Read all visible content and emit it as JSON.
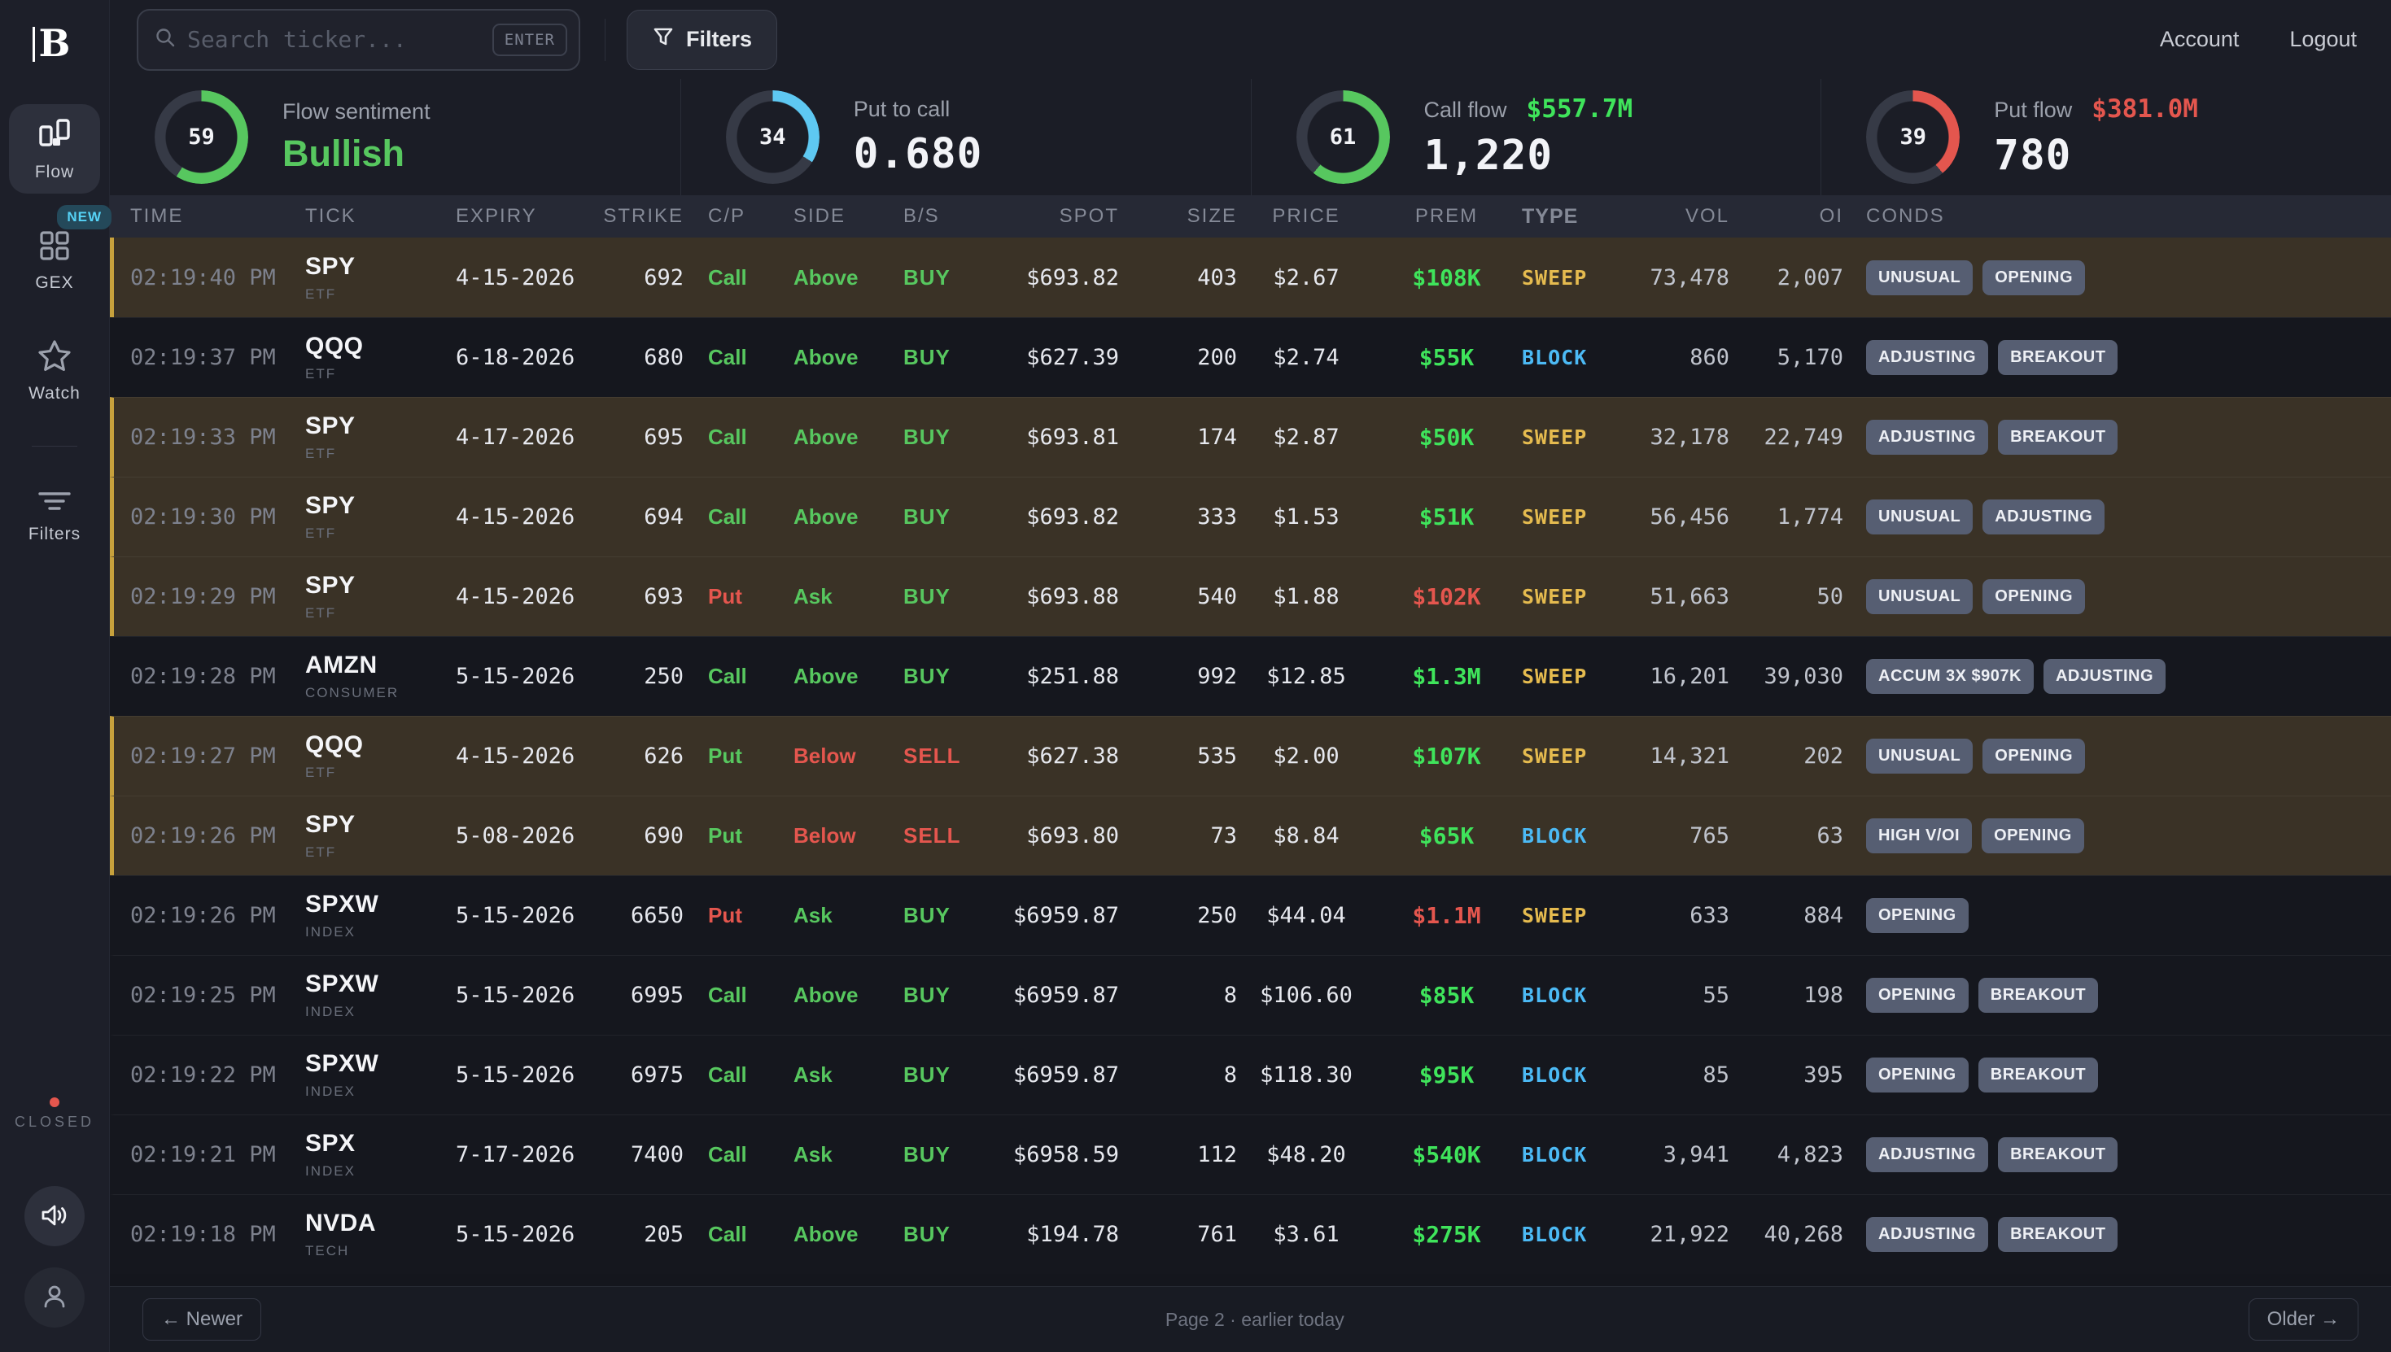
{
  "colors": {
    "green": "#57c75f",
    "lime": "#3fe45b",
    "red": "#e4564e",
    "blue": "#4cbaf5",
    "yellow": "#e5bb4f",
    "cyan": "#5ec8f2",
    "white": "#f2f3f7",
    "gold_highlight": "#c7a13c",
    "highlight_row_bg": "#3a3226"
  },
  "brand": {
    "logo_letter": "B"
  },
  "topbar": {
    "search_placeholder": "Search ticker...",
    "enter_hint": "ENTER",
    "filters_label": "Filters",
    "account_label": "Account",
    "logout_label": "Logout"
  },
  "sidebar": {
    "items": [
      {
        "label": "Flow",
        "active": true
      },
      {
        "label": "GEX",
        "badge": "NEW"
      },
      {
        "label": "Watch"
      },
      {
        "label": "Filters"
      }
    ],
    "market_status": "CLOSED"
  },
  "stats": [
    {
      "pct": 59,
      "color": "green",
      "label": "Flow sentiment",
      "value": "Bullish",
      "value_color": "green"
    },
    {
      "pct": 34,
      "color": "cyan",
      "label": "Put to call",
      "value": "0.680",
      "value_color": "white"
    },
    {
      "pct": 61,
      "color": "green",
      "label": "Call flow",
      "label_value": "$557.7M",
      "label_value_color": "lime",
      "value": "1,220",
      "value_color": "white"
    },
    {
      "pct": 39,
      "color": "red",
      "label": "Put flow",
      "label_value": "$381.0M",
      "label_value_color": "red",
      "value": "780",
      "value_color": "white"
    }
  ],
  "table": {
    "columns": [
      "TIME",
      "TICK",
      "EXPIRY",
      "STRIKE",
      "C/P",
      "SIDE",
      "B/S",
      "SPOT",
      "SIZE",
      "PRICE",
      "PREM",
      "TYPE",
      "VOL",
      "OI",
      "CONDS"
    ],
    "rows": [
      {
        "time": "02:19:40 PM",
        "tick": "SPY",
        "sector": "ETF",
        "expiry": "4-15-2026",
        "strike": "692",
        "cp": "Call",
        "cp_color": "green",
        "side": "Above",
        "side_color": "green",
        "bs": "BUY",
        "bs_color": "green",
        "spot": "$693.82",
        "size": "403",
        "price": "$2.67",
        "prem": "$108K",
        "prem_color": "lime",
        "type": "SWEEP",
        "type_color": "yellow",
        "vol": "73,478",
        "oi": "2,007",
        "conds": [
          "UNUSUAL",
          "OPENING"
        ],
        "highlight": true
      },
      {
        "time": "02:19:37 PM",
        "tick": "QQQ",
        "sector": "ETF",
        "expiry": "6-18-2026",
        "strike": "680",
        "cp": "Call",
        "cp_color": "green",
        "side": "Above",
        "side_color": "green",
        "bs": "BUY",
        "bs_color": "green",
        "spot": "$627.39",
        "size": "200",
        "price": "$2.74",
        "prem": "$55K",
        "prem_color": "lime",
        "type": "BLOCK",
        "type_color": "blue",
        "vol": "860",
        "oi": "5,170",
        "conds": [
          "ADJUSTING",
          "BREAKOUT"
        ],
        "highlight": false
      },
      {
        "time": "02:19:33 PM",
        "tick": "SPY",
        "sector": "ETF",
        "expiry": "4-17-2026",
        "strike": "695",
        "cp": "Call",
        "cp_color": "green",
        "side": "Above",
        "side_color": "green",
        "bs": "BUY",
        "bs_color": "green",
        "spot": "$693.81",
        "size": "174",
        "price": "$2.87",
        "prem": "$50K",
        "prem_color": "lime",
        "type": "SWEEP",
        "type_color": "yellow",
        "vol": "32,178",
        "oi": "22,749",
        "conds": [
          "ADJUSTING",
          "BREAKOUT"
        ],
        "highlight": true
      },
      {
        "time": "02:19:30 PM",
        "tick": "SPY",
        "sector": "ETF",
        "expiry": "4-15-2026",
        "strike": "694",
        "cp": "Call",
        "cp_color": "green",
        "side": "Above",
        "side_color": "green",
        "bs": "BUY",
        "bs_color": "green",
        "spot": "$693.82",
        "size": "333",
        "price": "$1.53",
        "prem": "$51K",
        "prem_color": "lime",
        "type": "SWEEP",
        "type_color": "yellow",
        "vol": "56,456",
        "oi": "1,774",
        "conds": [
          "UNUSUAL",
          "ADJUSTING"
        ],
        "highlight": true
      },
      {
        "time": "02:19:29 PM",
        "tick": "SPY",
        "sector": "ETF",
        "expiry": "4-15-2026",
        "strike": "693",
        "cp": "Put",
        "cp_color": "red",
        "side": "Ask",
        "side_color": "green",
        "bs": "BUY",
        "bs_color": "green",
        "spot": "$693.88",
        "size": "540",
        "price": "$1.88",
        "prem": "$102K",
        "prem_color": "red",
        "type": "SWEEP",
        "type_color": "yellow",
        "vol": "51,663",
        "oi": "50",
        "conds": [
          "UNUSUAL",
          "OPENING"
        ],
        "highlight": true
      },
      {
        "time": "02:19:28 PM",
        "tick": "AMZN",
        "sector": "CONSUMER",
        "expiry": "5-15-2026",
        "strike": "250",
        "cp": "Call",
        "cp_color": "green",
        "side": "Above",
        "side_color": "green",
        "bs": "BUY",
        "bs_color": "green",
        "spot": "$251.88",
        "size": "992",
        "price": "$12.85",
        "prem": "$1.3M",
        "prem_color": "lime",
        "type": "SWEEP",
        "type_color": "yellow",
        "vol": "16,201",
        "oi": "39,030",
        "conds": [
          "ACCUM 3X $907K",
          "ADJUSTING"
        ],
        "highlight": false
      },
      {
        "time": "02:19:27 PM",
        "tick": "QQQ",
        "sector": "ETF",
        "expiry": "4-15-2026",
        "strike": "626",
        "cp": "Put",
        "cp_color": "green",
        "side": "Below",
        "side_color": "red",
        "bs": "SELL",
        "bs_color": "red",
        "spot": "$627.38",
        "size": "535",
        "price": "$2.00",
        "prem": "$107K",
        "prem_color": "lime",
        "type": "SWEEP",
        "type_color": "yellow",
        "vol": "14,321",
        "oi": "202",
        "conds": [
          "UNUSUAL",
          "OPENING"
        ],
        "highlight": true
      },
      {
        "time": "02:19:26 PM",
        "tick": "SPY",
        "sector": "ETF",
        "expiry": "5-08-2026",
        "strike": "690",
        "cp": "Put",
        "cp_color": "green",
        "side": "Below",
        "side_color": "red",
        "bs": "SELL",
        "bs_color": "red",
        "spot": "$693.80",
        "size": "73",
        "price": "$8.84",
        "prem": "$65K",
        "prem_color": "lime",
        "type": "BLOCK",
        "type_color": "blue",
        "vol": "765",
        "oi": "63",
        "conds": [
          "HIGH V/OI",
          "OPENING"
        ],
        "highlight": true
      },
      {
        "time": "02:19:26 PM",
        "tick": "SPXW",
        "sector": "INDEX",
        "expiry": "5-15-2026",
        "strike": "6650",
        "cp": "Put",
        "cp_color": "red",
        "side": "Ask",
        "side_color": "green",
        "bs": "BUY",
        "bs_color": "green",
        "spot": "$6959.87",
        "size": "250",
        "price": "$44.04",
        "prem": "$1.1M",
        "prem_color": "red",
        "type": "SWEEP",
        "type_color": "yellow",
        "vol": "633",
        "oi": "884",
        "conds": [
          "OPENING"
        ],
        "highlight": false
      },
      {
        "time": "02:19:25 PM",
        "tick": "SPXW",
        "sector": "INDEX",
        "expiry": "5-15-2026",
        "strike": "6995",
        "cp": "Call",
        "cp_color": "green",
        "side": "Above",
        "side_color": "green",
        "bs": "BUY",
        "bs_color": "green",
        "spot": "$6959.87",
        "size": "8",
        "price": "$106.60",
        "prem": "$85K",
        "prem_color": "lime",
        "type": "BLOCK",
        "type_color": "blue",
        "vol": "55",
        "oi": "198",
        "conds": [
          "OPENING",
          "BREAKOUT"
        ],
        "highlight": false
      },
      {
        "time": "02:19:22 PM",
        "tick": "SPXW",
        "sector": "INDEX",
        "expiry": "5-15-2026",
        "strike": "6975",
        "cp": "Call",
        "cp_color": "green",
        "side": "Ask",
        "side_color": "green",
        "bs": "BUY",
        "bs_color": "green",
        "spot": "$6959.87",
        "size": "8",
        "price": "$118.30",
        "prem": "$95K",
        "prem_color": "lime",
        "type": "BLOCK",
        "type_color": "blue",
        "vol": "85",
        "oi": "395",
        "conds": [
          "OPENING",
          "BREAKOUT"
        ],
        "highlight": false
      },
      {
        "time": "02:19:21 PM",
        "tick": "SPX",
        "sector": "INDEX",
        "expiry": "7-17-2026",
        "strike": "7400",
        "cp": "Call",
        "cp_color": "green",
        "side": "Ask",
        "side_color": "green",
        "bs": "BUY",
        "bs_color": "green",
        "spot": "$6958.59",
        "size": "112",
        "price": "$48.20",
        "prem": "$540K",
        "prem_color": "lime",
        "type": "BLOCK",
        "type_color": "blue",
        "vol": "3,941",
        "oi": "4,823",
        "conds": [
          "ADJUSTING",
          "BREAKOUT"
        ],
        "highlight": false
      },
      {
        "time": "02:19:18 PM",
        "tick": "NVDA",
        "sector": "TECH",
        "expiry": "5-15-2026",
        "strike": "205",
        "cp": "Call",
        "cp_color": "green",
        "side": "Above",
        "side_color": "green",
        "bs": "BUY",
        "bs_color": "green",
        "spot": "$194.78",
        "size": "761",
        "price": "$3.61",
        "prem": "$275K",
        "prem_color": "lime",
        "type": "BLOCK",
        "type_color": "blue",
        "vol": "21,922",
        "oi": "40,268",
        "conds": [
          "ADJUSTING",
          "BREAKOUT"
        ],
        "highlight": false
      }
    ]
  },
  "footer": {
    "newer_label": "← Newer",
    "page_info": "Page 2 · earlier today",
    "older_label": "Older →"
  }
}
